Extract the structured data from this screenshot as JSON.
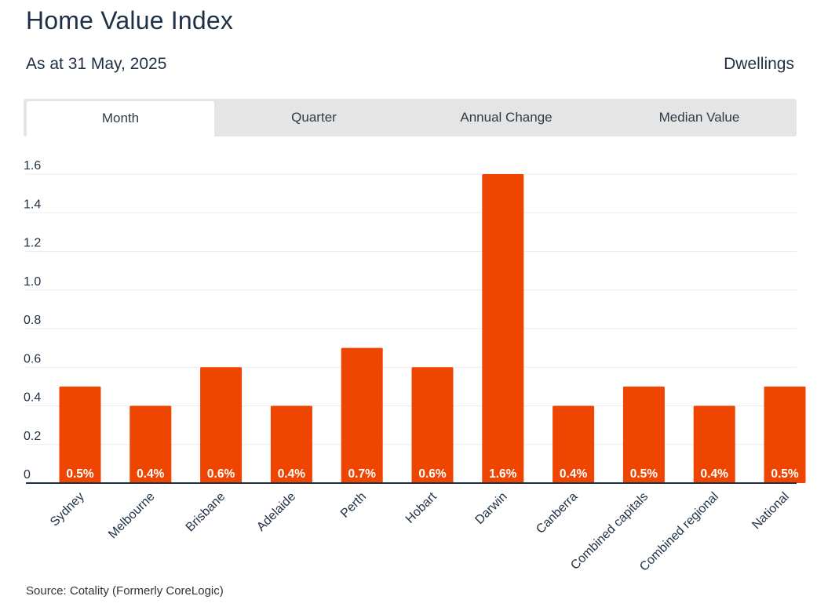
{
  "header": {
    "title": "Home Value Index",
    "as_at": "As at 31 May, 2025",
    "dwellings": "Dwellings"
  },
  "tabs": [
    {
      "label": "Month",
      "active": true
    },
    {
      "label": "Quarter",
      "active": false
    },
    {
      "label": "Annual Change",
      "active": false
    },
    {
      "label": "Median Value",
      "active": false
    }
  ],
  "source": "Source: Cotality (Formerly CoreLogic)",
  "colors": {
    "bar": "#ee4500",
    "grid": "#ebebeb",
    "axis": "#1e3045",
    "label": "#ffffff"
  },
  "chart_data": {
    "type": "bar",
    "title": "",
    "xlabel": "",
    "ylabel": "",
    "ylim": [
      0,
      1.6
    ],
    "yticks": [
      "0",
      "0.2",
      "0.4",
      "0.6",
      "0.8",
      "1.0",
      "1.2",
      "1.4",
      "1.6"
    ],
    "categories": [
      "Sydney",
      "Melbourne",
      "Brisbane",
      "Adelaide",
      "Perth",
      "Hobart",
      "Darwin",
      "Canberra",
      "Combined capitals",
      "Combined regional",
      "National"
    ],
    "values": [
      0.5,
      0.4,
      0.6,
      0.4,
      0.7,
      0.6,
      1.6,
      0.4,
      0.5,
      0.4,
      0.5
    ],
    "data_labels": [
      "0.5%",
      "0.4%",
      "0.6%",
      "0.4%",
      "0.7%",
      "0.6%",
      "1.6%",
      "0.4%",
      "0.5%",
      "0.4%",
      "0.5%"
    ],
    "grid": true,
    "legend": "none"
  }
}
